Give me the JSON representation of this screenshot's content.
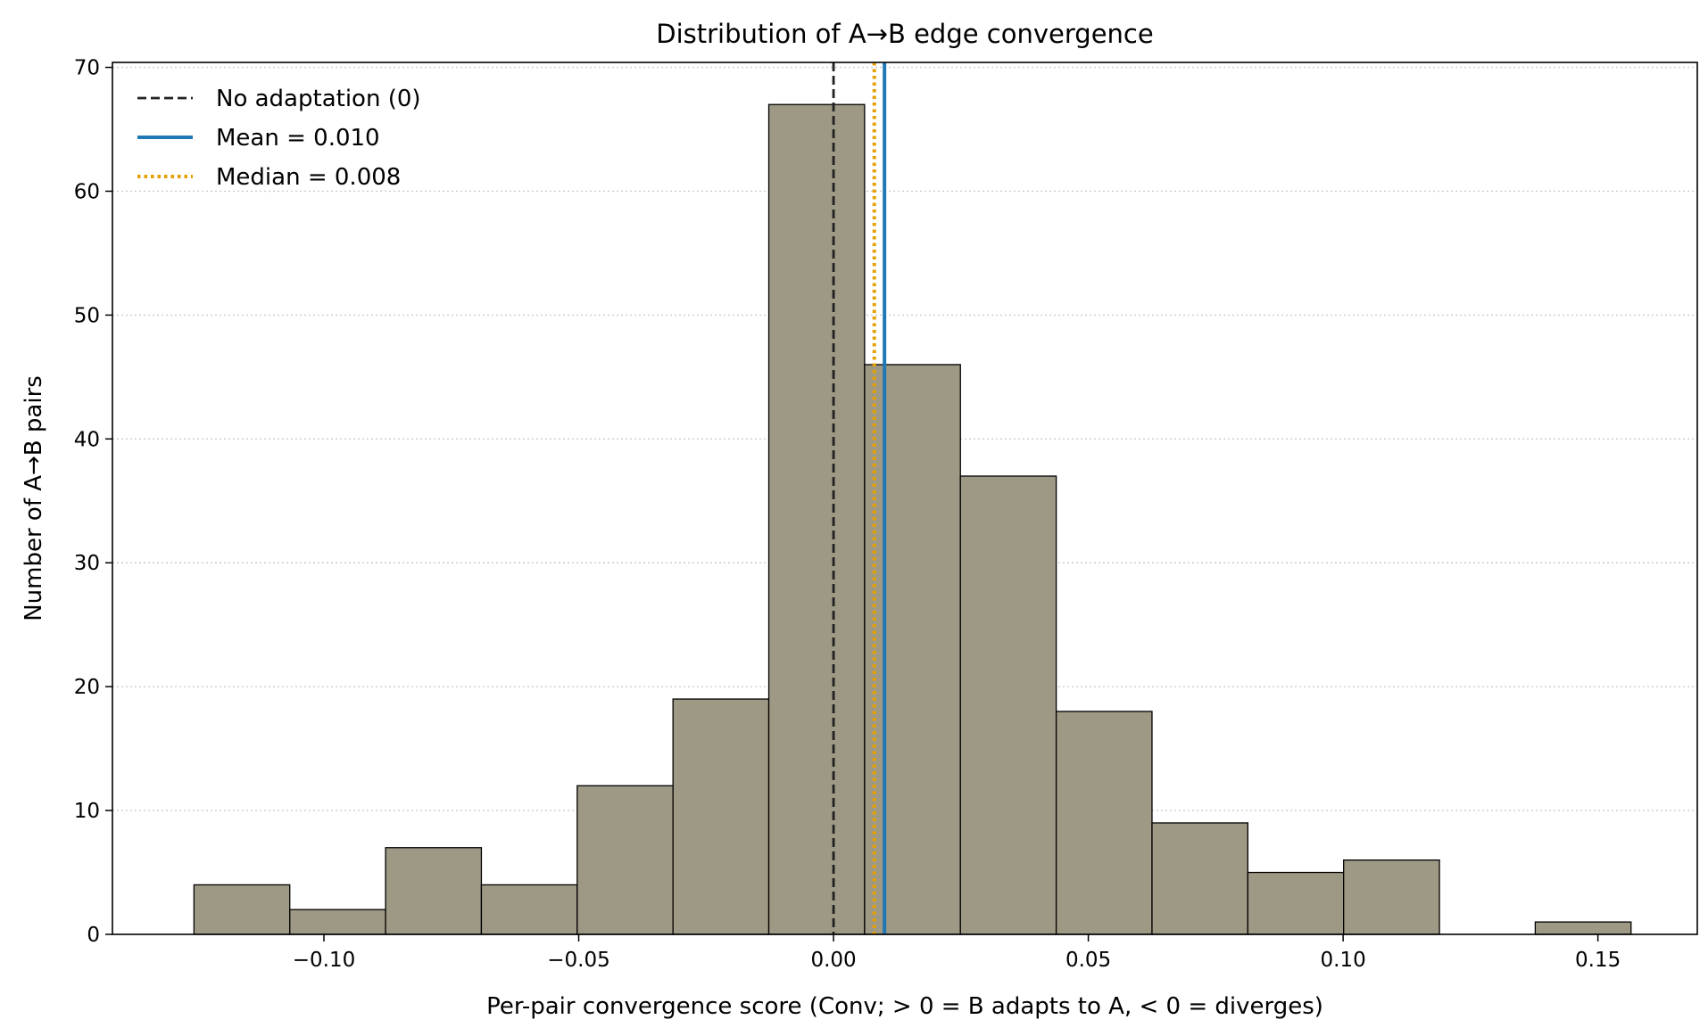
{
  "chart_data": {
    "type": "histogram",
    "title": "Distribution of A→B edge convergence",
    "xlabel": "Per-pair convergence score (Conv; > 0 = B adapts to A, < 0 = diverges)",
    "ylabel": "Number of A→B pairs",
    "xlim": [
      -0.1415,
      0.1695
    ],
    "ylim": [
      0,
      70.4
    ],
    "x_ticks": [
      {
        "value": -0.1,
        "label": "−0.10"
      },
      {
        "value": -0.05,
        "label": "−0.05"
      },
      {
        "value": 0.0,
        "label": "0.00"
      },
      {
        "value": 0.05,
        "label": "0.05"
      },
      {
        "value": 0.1,
        "label": "0.10"
      },
      {
        "value": 0.15,
        "label": "0.15"
      }
    ],
    "y_ticks": [
      {
        "value": 0,
        "label": "0"
      },
      {
        "value": 10,
        "label": "10"
      },
      {
        "value": 20,
        "label": "20"
      },
      {
        "value": 30,
        "label": "30"
      },
      {
        "value": 40,
        "label": "40"
      },
      {
        "value": 50,
        "label": "50"
      },
      {
        "value": 60,
        "label": "60"
      },
      {
        "value": 70,
        "label": "70"
      }
    ],
    "bin_edges": [
      -0.1255,
      -0.1067,
      -0.0879,
      -0.0691,
      -0.0503,
      -0.0315,
      -0.0127,
      0.0061,
      0.0249,
      0.0437,
      0.0625,
      0.0813,
      0.1001,
      0.1189,
      0.1377,
      0.1565
    ],
    "counts": [
      4,
      2,
      7,
      4,
      12,
      19,
      67,
      46,
      37,
      18,
      9,
      5,
      6,
      0,
      1
    ],
    "bar_color": "#9e9985",
    "bar_edge_color": "#000000",
    "grid": {
      "axis": "y",
      "style": "dotted",
      "color": "#cccccc"
    },
    "reference_lines": [
      {
        "label": "No adaptation (0)",
        "x": 0.0,
        "color": "#222222",
        "style": "dashed"
      },
      {
        "label": "Mean = 0.010",
        "x": 0.01,
        "color": "#1f77b4",
        "style": "solid"
      },
      {
        "label": "Median = 0.008",
        "x": 0.008,
        "color": "#e69f00",
        "style": "dotted"
      }
    ],
    "legend_position": "top-left"
  }
}
